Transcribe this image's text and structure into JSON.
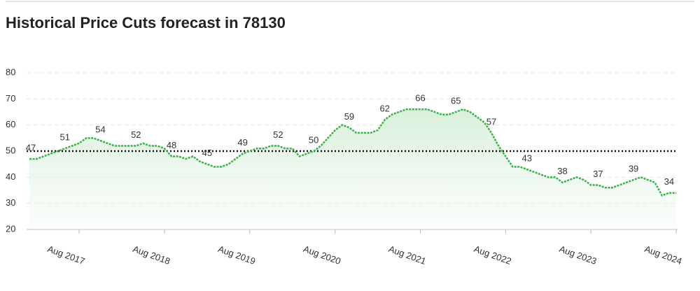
{
  "chart_data": {
    "type": "line",
    "title": "Historical Price Cuts forecast in 78130",
    "categories": [
      null,
      null,
      null,
      null,
      null,
      null,
      null,
      "Aug 2017",
      null,
      null,
      null,
      null,
      null,
      null,
      null,
      null,
      null,
      null,
      null,
      "Aug 2018",
      null,
      null,
      null,
      null,
      null,
      null,
      null,
      null,
      null,
      null,
      null,
      "Aug 2019",
      null,
      null,
      null,
      null,
      null,
      null,
      null,
      null,
      null,
      null,
      null,
      "Aug 2020",
      null,
      null,
      null,
      null,
      null,
      null,
      null,
      null,
      null,
      null,
      null,
      "Aug 2021",
      null,
      null,
      null,
      null,
      null,
      null,
      null,
      null,
      null,
      null,
      null,
      "Aug 2022",
      null,
      null,
      null,
      null,
      null,
      null,
      null,
      null,
      null,
      null,
      null,
      "Aug 2023",
      null,
      null,
      null,
      null,
      null,
      null,
      null,
      null,
      null,
      null,
      null,
      "Aug 2024"
    ],
    "values": [
      47,
      47,
      48,
      49,
      50,
      51,
      52,
      53,
      55,
      55,
      54,
      53,
      52,
      52,
      52,
      52,
      53,
      52,
      52,
      51,
      48,
      48,
      47,
      48,
      46,
      45,
      44,
      44,
      45,
      47,
      49,
      50,
      51,
      51,
      52,
      52,
      51,
      51,
      48,
      49,
      50,
      52,
      55,
      58,
      60,
      59,
      57,
      57,
      57,
      58,
      62,
      64,
      65,
      66,
      66,
      66,
      66,
      65,
      64,
      64,
      65,
      66,
      65,
      63,
      61,
      57,
      52,
      48,
      44,
      44,
      43,
      42,
      41,
      40,
      40,
      38,
      39,
      40,
      39,
      37,
      37,
      36,
      36,
      37,
      38,
      39,
      40,
      39,
      38,
      33,
      34,
      34
    ],
    "color": "#3cb04a",
    "reference_line": 50,
    "ylim": [
      20,
      80
    ],
    "yticks": [
      20,
      30,
      40,
      50,
      60,
      70,
      80
    ],
    "grid": true
  }
}
